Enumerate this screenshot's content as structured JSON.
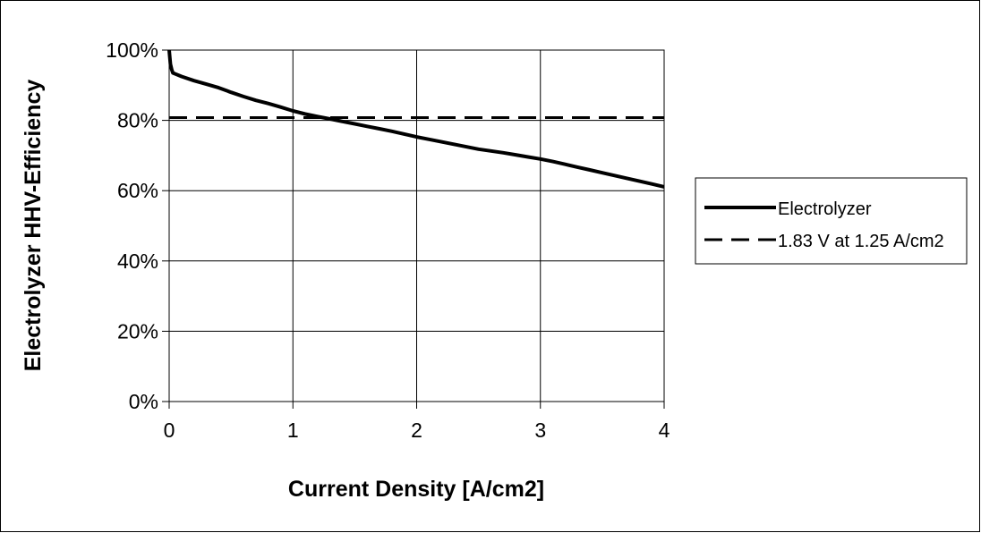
{
  "chart_data": {
    "type": "line",
    "title": "",
    "xlabel": "Current Density [A/cm2]",
    "ylabel": "Electrolyzer HHV-Efficiency",
    "xlim": [
      0,
      4
    ],
    "ylim": [
      0,
      1
    ],
    "x_ticks": [
      0,
      1,
      2,
      3,
      4
    ],
    "x_tick_labels": [
      "0",
      "1",
      "2",
      "3",
      "4"
    ],
    "y_ticks": [
      0,
      0.2,
      0.4,
      0.6,
      0.8,
      1.0
    ],
    "y_tick_labels": [
      "0%",
      "20%",
      "40%",
      "60%",
      "80%",
      "100%"
    ],
    "grid": true,
    "legend_position": "right",
    "series": [
      {
        "name": "Electrolyzer",
        "style": "solid",
        "color": "#000000",
        "x": [
          0,
          0.005,
          0.01,
          0.02,
          0.03,
          0.05,
          0.1,
          0.2,
          0.3,
          0.4,
          0.5,
          0.6,
          0.7,
          0.8,
          0.9,
          1.0,
          1.1,
          1.2,
          1.3,
          1.4,
          1.5,
          1.6,
          1.7,
          1.8,
          1.9,
          2.0,
          2.1,
          2.2,
          2.3,
          2.4,
          2.5,
          2.6,
          2.7,
          2.8,
          2.9,
          3.0,
          3.1,
          3.2,
          3.3,
          3.4,
          3.5,
          3.6,
          3.7,
          3.8,
          3.9,
          4.0
        ],
        "y": [
          1.0,
          0.98,
          0.96,
          0.945,
          0.935,
          0.932,
          0.925,
          0.913,
          0.903,
          0.893,
          0.88,
          0.868,
          0.857,
          0.848,
          0.838,
          0.827,
          0.818,
          0.811,
          0.804,
          0.797,
          0.79,
          0.783,
          0.776,
          0.769,
          0.761,
          0.753,
          0.746,
          0.739,
          0.732,
          0.725,
          0.718,
          0.713,
          0.708,
          0.702,
          0.696,
          0.69,
          0.683,
          0.675,
          0.667,
          0.659,
          0.651,
          0.643,
          0.635,
          0.627,
          0.619,
          0.611
        ]
      },
      {
        "name": "1.83 V at 1.25 A/cm2",
        "style": "dashed",
        "color": "#000000",
        "x": [
          0,
          4
        ],
        "y": [
          0.808,
          0.808
        ]
      }
    ]
  }
}
